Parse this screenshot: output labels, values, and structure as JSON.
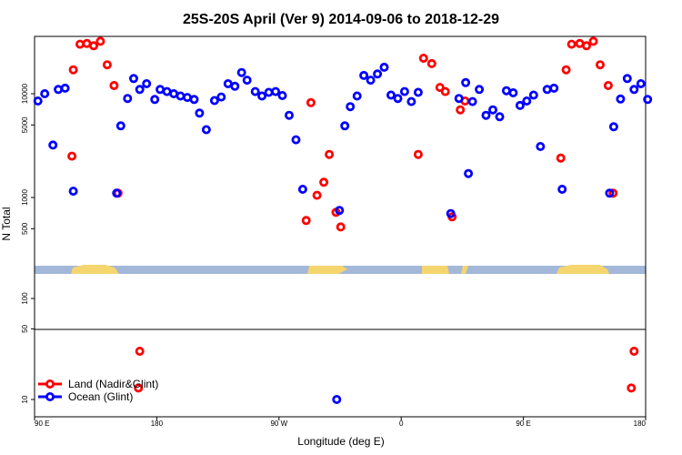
{
  "chart_data": {
    "type": "scatter",
    "title": "25S-20S April (Ver 9)   2014-09-06 to 2018-12-29",
    "xlabel": "Longitude (deg E)",
    "ylabel": "N Total",
    "x_tick_labels": [
      "90 E",
      "180",
      "90 W",
      "0",
      "90 E",
      "180"
    ],
    "xlim": [
      90,
      540
    ],
    "y_ticks_upper": [
      {
        "value": 500,
        "label": "500"
      },
      {
        "value": 1000,
        "label": "1000"
      },
      {
        "value": 5000,
        "label": "5000"
      },
      {
        "value": 10000,
        "label": "10000"
      }
    ],
    "y_ticks_lower": [
      {
        "value": 10,
        "label": "10"
      },
      {
        "value": 50,
        "label": "50"
      },
      {
        "value": 100,
        "label": "100"
      }
    ],
    "y_scale": "log",
    "colors": {
      "land": "#ff0000",
      "ocean": "#0000ff",
      "ocean_band": "#a3b7d9",
      "land_band": "#f5d56e"
    },
    "series": [
      {
        "name": "Land (Nadir&Glint)",
        "color": "#ff0000",
        "points": [
          [
            117.5,
            2500
          ],
          [
            118.5,
            17000
          ],
          [
            123.5,
            30000
          ],
          [
            128.5,
            30500
          ],
          [
            133.5,
            29000
          ],
          [
            138.5,
            32000
          ],
          [
            143.5,
            19000
          ],
          [
            148.5,
            12000
          ],
          [
            151.5,
            1100
          ],
          [
            166.5,
            13
          ],
          [
            167.5,
            30
          ],
          [
            290,
            600
          ],
          [
            293.5,
            8200
          ],
          [
            298,
            1050
          ],
          [
            303,
            1400
          ],
          [
            307,
            2600
          ],
          [
            312,
            720
          ],
          [
            315.5,
            520
          ],
          [
            372.5,
            2600
          ],
          [
            376.5,
            22000
          ],
          [
            382.5,
            19500
          ],
          [
            388.5,
            11500
          ],
          [
            392.5,
            10500
          ],
          [
            397.5,
            650
          ],
          [
            403.5,
            7000
          ],
          [
            407,
            8500
          ],
          [
            477.5,
            2400
          ],
          [
            481.5,
            17000
          ],
          [
            485.5,
            30000
          ],
          [
            491.5,
            30500
          ],
          [
            496.5,
            29000
          ],
          [
            501.5,
            32000
          ],
          [
            506.5,
            19000
          ],
          [
            512.5,
            12000
          ],
          [
            516,
            1100
          ],
          [
            529.5,
            13
          ],
          [
            531.5,
            30
          ]
        ]
      },
      {
        "name": "Ocean (Glint)",
        "color": "#0000ff",
        "points": [
          [
            92.5,
            8500
          ],
          [
            97.5,
            10000
          ],
          [
            103.5,
            3200
          ],
          [
            107.5,
            11000
          ],
          [
            112.5,
            11300
          ],
          [
            118.5,
            1150
          ],
          [
            150.5,
            1100
          ],
          [
            153.5,
            4900
          ],
          [
            158.5,
            9000
          ],
          [
            163,
            14000
          ],
          [
            167.5,
            11000
          ],
          [
            172.5,
            12500
          ],
          [
            178.5,
            8800
          ],
          [
            182.5,
            11000
          ],
          [
            187.5,
            10500
          ],
          [
            192.5,
            10000
          ],
          [
            197.5,
            9500
          ],
          [
            202.5,
            9200
          ],
          [
            207.5,
            8800
          ],
          [
            211.5,
            6500
          ],
          [
            216.5,
            4500
          ],
          [
            222.5,
            8600
          ],
          [
            227.5,
            9300
          ],
          [
            232.5,
            12500
          ],
          [
            237.5,
            11800
          ],
          [
            242.5,
            16000
          ],
          [
            246.5,
            13500
          ],
          [
            252.5,
            10500
          ],
          [
            257.5,
            9500
          ],
          [
            262.5,
            10300
          ],
          [
            267.5,
            10500
          ],
          [
            272.5,
            9600
          ],
          [
            277.5,
            6200
          ],
          [
            282.5,
            3600
          ],
          [
            287.5,
            1200
          ],
          [
            312.5,
            10
          ],
          [
            314.5,
            750
          ],
          [
            318.5,
            4900
          ],
          [
            322.5,
            7500
          ],
          [
            327.5,
            9500
          ],
          [
            332.5,
            15000
          ],
          [
            337.5,
            13500
          ],
          [
            342.5,
            15500
          ],
          [
            347.5,
            18000
          ],
          [
            352.5,
            9700
          ],
          [
            357.5,
            9000
          ],
          [
            362.5,
            10500
          ],
          [
            367.5,
            8400
          ],
          [
            372.5,
            10300
          ],
          [
            396.5,
            700
          ],
          [
            402.5,
            9000
          ],
          [
            407.5,
            12800
          ],
          [
            409.5,
            1700
          ],
          [
            412.5,
            8400
          ],
          [
            417.5,
            11000
          ],
          [
            422.5,
            6200
          ],
          [
            427.5,
            7000
          ],
          [
            432.5,
            6000
          ],
          [
            437.5,
            10700
          ],
          [
            442.5,
            10200
          ],
          [
            447.5,
            7700
          ],
          [
            452.5,
            8500
          ],
          [
            457.5,
            9700
          ],
          [
            462.5,
            3100
          ],
          [
            467.5,
            11000
          ],
          [
            472.5,
            11300
          ],
          [
            478.5,
            1200
          ],
          [
            513.5,
            1100
          ],
          [
            516.5,
            4800
          ],
          [
            521.5,
            8900
          ],
          [
            526.5,
            14000
          ],
          [
            531.5,
            11000
          ],
          [
            536.5,
            12500
          ],
          [
            541.5,
            8800
          ]
        ]
      }
    ],
    "legend": [
      "Land (Nadir&Glint)",
      "Ocean (Glint)"
    ],
    "legend_position": "bottom-left",
    "grid": false
  }
}
